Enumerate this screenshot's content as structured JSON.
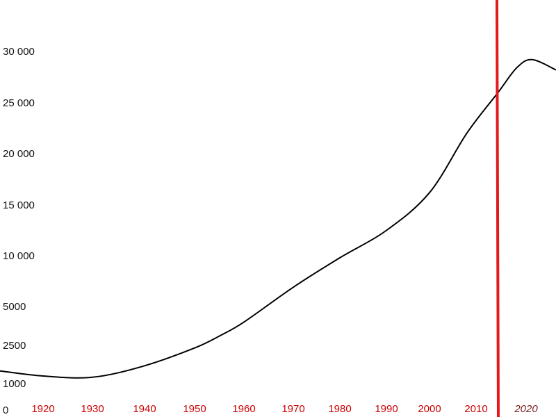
{
  "chart_data": {
    "type": "line",
    "title": "",
    "xlabel": "",
    "ylabel": "",
    "xlim": [
      1910,
      2025
    ],
    "grid": false,
    "legend": "none",
    "y_ticks": [
      {
        "label": "30 000",
        "value": 30000
      },
      {
        "label": "25 000",
        "value": 25000
      },
      {
        "label": "20 000",
        "value": 20000
      },
      {
        "label": "15 000",
        "value": 15000
      },
      {
        "label": "10 000",
        "value": 10000
      },
      {
        "label": "5000",
        "value": 5000
      },
      {
        "label": "2500",
        "value": 2500
      },
      {
        "label": "1000",
        "value": 1000
      },
      {
        "label": "0",
        "value": 0
      }
    ],
    "x_ticks": [
      {
        "label": "1920",
        "value": 1920,
        "italic": false
      },
      {
        "label": "1930",
        "value": 1930,
        "italic": false
      },
      {
        "label": "1940",
        "value": 1940,
        "italic": false
      },
      {
        "label": "1950",
        "value": 1950,
        "italic": false
      },
      {
        "label": "1960",
        "value": 1960,
        "italic": false
      },
      {
        "label": "1970",
        "value": 1970,
        "italic": false
      },
      {
        "label": "1980",
        "value": 1980,
        "italic": false
      },
      {
        "label": "1990",
        "value": 1990,
        "italic": false
      },
      {
        "label": "2000",
        "value": 2000,
        "italic": false
      },
      {
        "label": "2010",
        "value": 2010,
        "italic": false
      },
      {
        "label": "2020",
        "value": 2020,
        "italic": true
      }
    ],
    "series": [
      {
        "color": "#000000",
        "points": [
          [
            1910,
            1500
          ],
          [
            1920,
            1300
          ],
          [
            1930,
            1250
          ],
          [
            1940,
            1700
          ],
          [
            1950,
            2400
          ],
          [
            1955,
            3100
          ],
          [
            1960,
            4000
          ],
          [
            1970,
            6900
          ],
          [
            1980,
            9800
          ],
          [
            1990,
            12500
          ],
          [
            2000,
            16200
          ],
          [
            2008,
            22000
          ],
          [
            2014,
            25950
          ],
          [
            2018,
            28400
          ],
          [
            2021,
            29200
          ],
          [
            2025,
            28200
          ]
        ]
      }
    ],
    "marker_line": {
      "x": 2014,
      "color": "#e31a1c"
    },
    "colors": {
      "line": "#000000",
      "marker": "#e31a1c",
      "x_tick": "#cc0000",
      "x_tick_italic": "#7a1e1e",
      "y_tick": "#111111"
    }
  }
}
